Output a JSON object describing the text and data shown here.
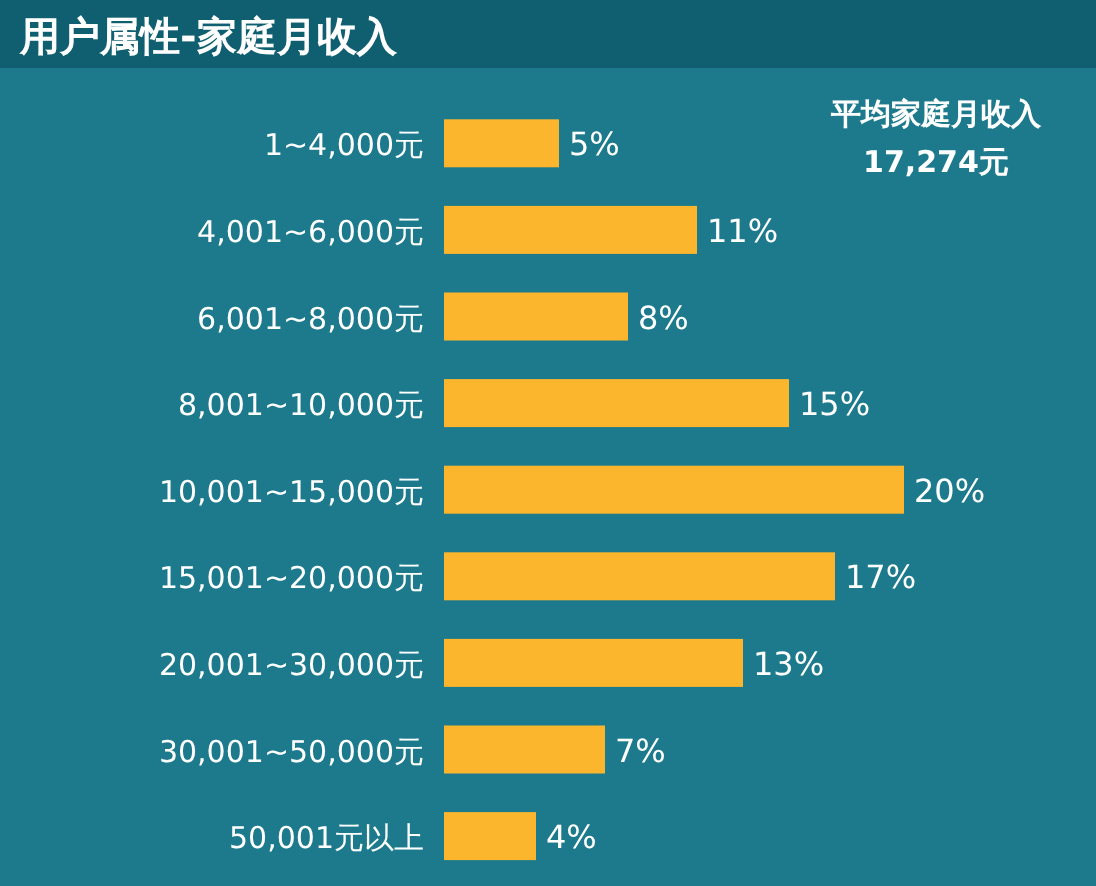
{
  "chart_data": {
    "type": "bar",
    "orientation": "horizontal",
    "title": "用户属性-家庭月收入",
    "annotations": [
      "平均家庭月收入",
      "17,274元"
    ],
    "categories": [
      "1~4,000元",
      "4,001~6,000元",
      "6,001~8,000元",
      "8,001~10,000元",
      "10,001~15,000元",
      "15,001~20,000元",
      "20,001~30,000元",
      "30,001~50,000元",
      "50,001元以上"
    ],
    "values": [
      5,
      11,
      8,
      15,
      20,
      17,
      13,
      7,
      4
    ],
    "value_labels": [
      "5%",
      "11%",
      "8%",
      "15%",
      "20%",
      "17%",
      "13%",
      "7%",
      "4%"
    ],
    "color": "#fbb62e"
  }
}
